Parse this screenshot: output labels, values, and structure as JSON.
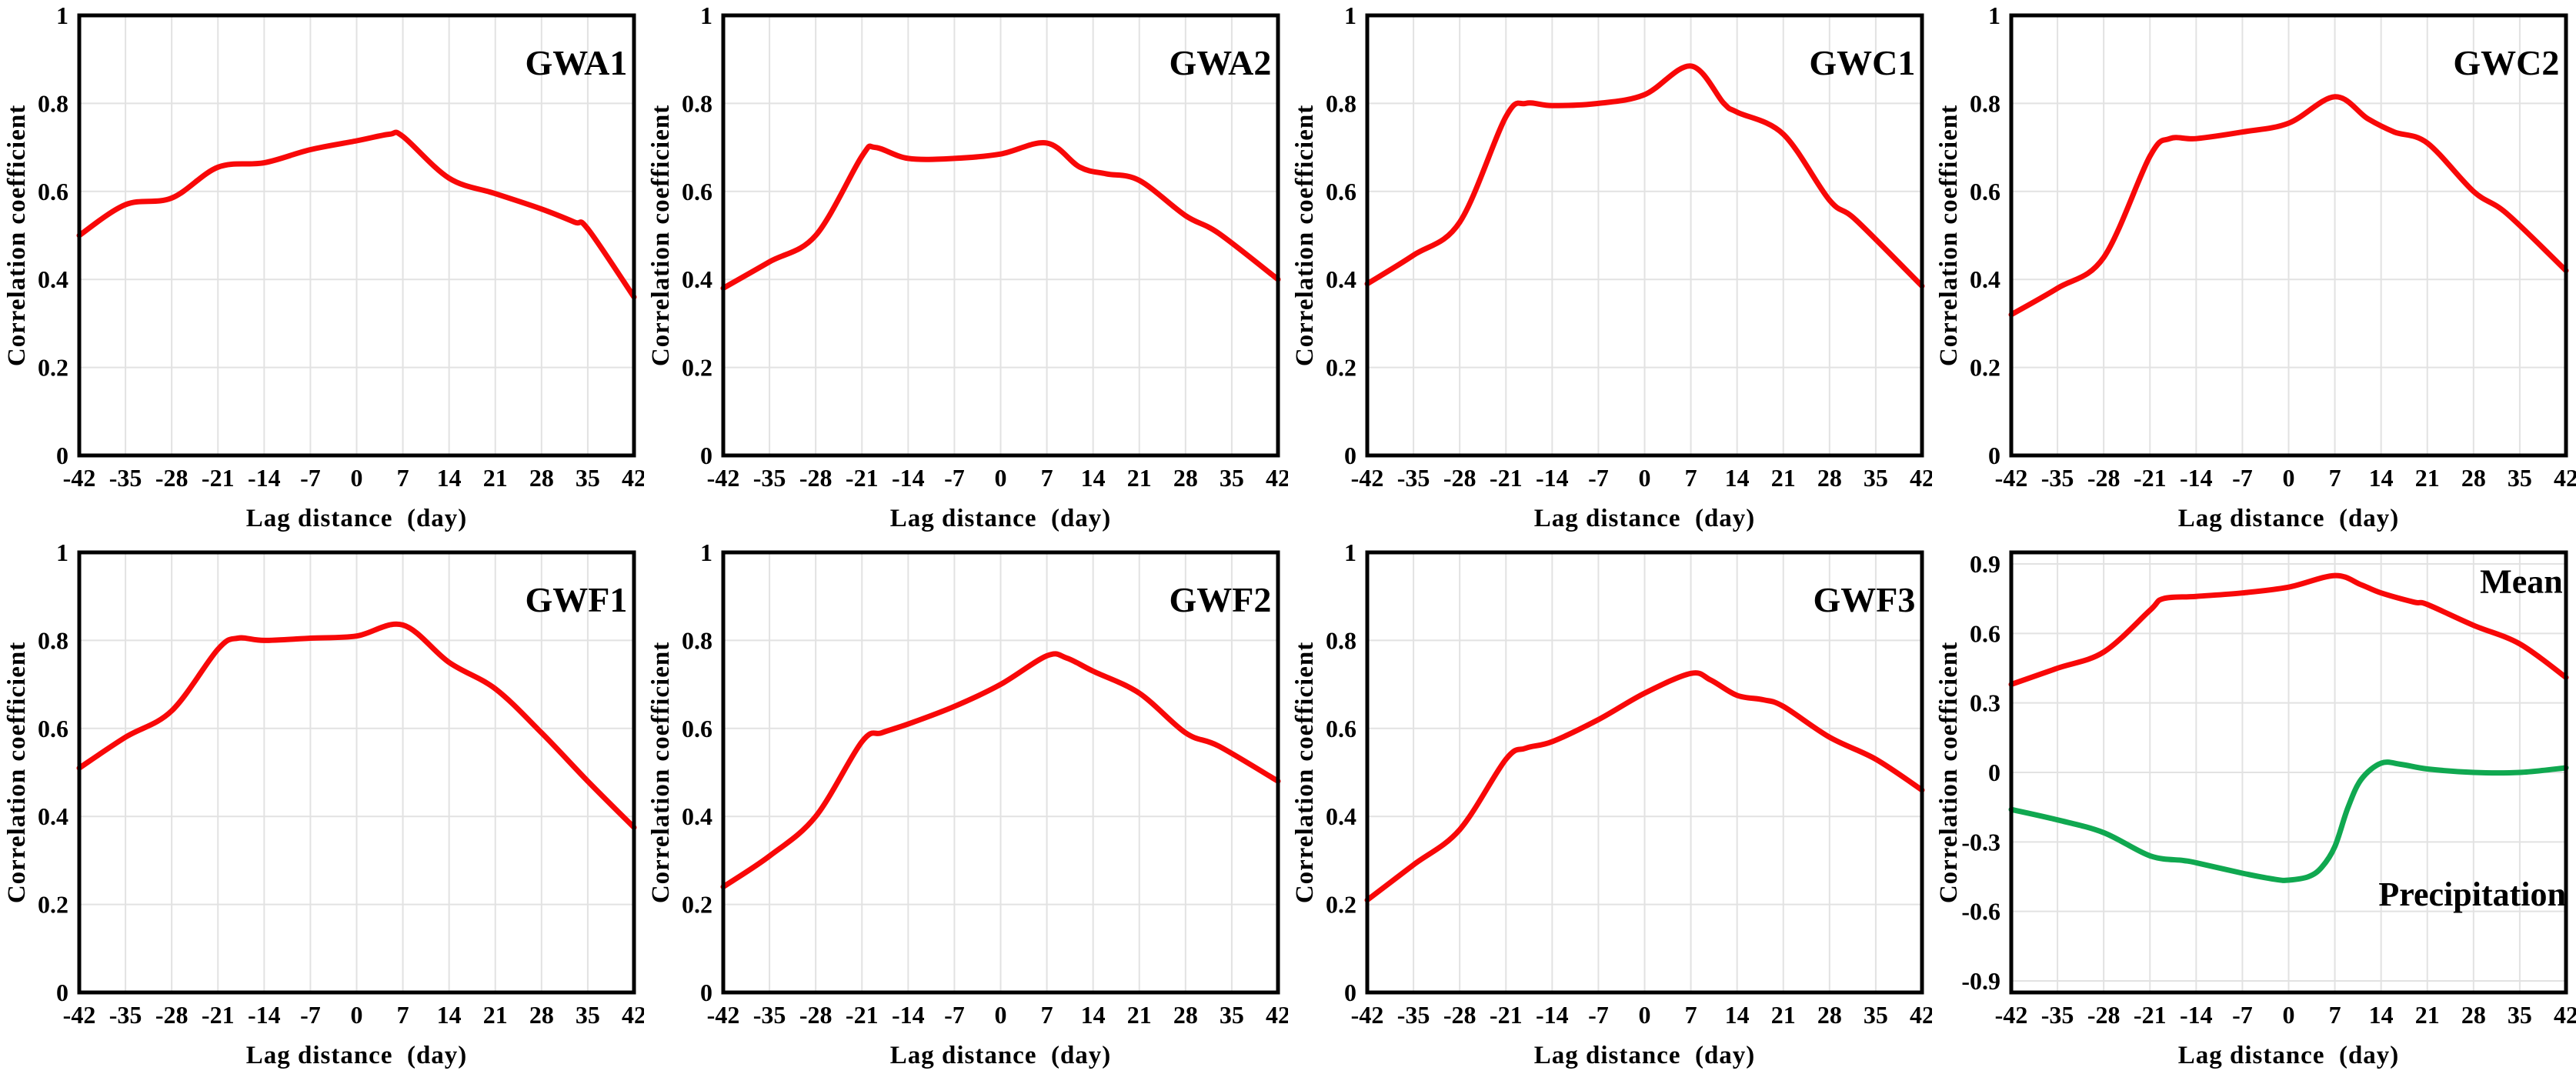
{
  "figure": {
    "ylabel": "Correlation coefficient",
    "xlabel": "Lag distance  (day)",
    "colors": {
      "series_red": "#f80808",
      "series_green": "#10a850",
      "grid": "#e2e2e2",
      "frame": "#000000",
      "text": "#000000",
      "background": "#ffffff"
    }
  },
  "chart_data": [
    {
      "id": "gwa1",
      "type": "line",
      "title": "GWA1",
      "xlabel": "Lag distance  (day)",
      "ylabel": "Correlation coefficient",
      "xlim": [
        -42,
        42
      ],
      "ylim": [
        0,
        1
      ],
      "grid": true,
      "x_ticks": [
        -42,
        -35,
        -28,
        -21,
        -14,
        -7,
        0,
        7,
        14,
        21,
        28,
        35,
        42
      ],
      "y_ticks": [
        1,
        0.8,
        0.6,
        0.4,
        0.2,
        0
      ],
      "series": [
        {
          "name": "GWA1",
          "color": "#f80808",
          "points": [
            [
              -42,
              0.5
            ],
            [
              -35,
              0.57
            ],
            [
              -28,
              0.585
            ],
            [
              -21,
              0.655
            ],
            [
              -14,
              0.665
            ],
            [
              -7,
              0.695
            ],
            [
              0,
              0.715
            ],
            [
              5,
              0.73
            ],
            [
              7,
              0.725
            ],
            [
              14,
              0.63
            ],
            [
              21,
              0.595
            ],
            [
              28,
              0.56
            ],
            [
              33,
              0.53
            ],
            [
              35,
              0.515
            ],
            [
              42,
              0.36
            ]
          ]
        }
      ],
      "annotations": [
        {
          "text": "GWA1",
          "x": 41,
          "y": 0.865,
          "anchor": "end",
          "cls": "panel-title",
          "name": "panel-title-gwa1"
        }
      ]
    },
    {
      "id": "gwa2",
      "type": "line",
      "title": "GWA2",
      "xlabel": "Lag distance  (day)",
      "ylabel": "Correlation coefficient",
      "xlim": [
        -42,
        42
      ],
      "ylim": [
        0,
        1
      ],
      "grid": true,
      "x_ticks": [
        -42,
        -35,
        -28,
        -21,
        -14,
        -7,
        0,
        7,
        14,
        21,
        28,
        35,
        42
      ],
      "y_ticks": [
        1,
        0.8,
        0.6,
        0.4,
        0.2,
        0
      ],
      "series": [
        {
          "name": "GWA2",
          "color": "#f80808",
          "points": [
            [
              -42,
              0.38
            ],
            [
              -35,
              0.44
            ],
            [
              -28,
              0.5
            ],
            [
              -21,
              0.68
            ],
            [
              -19,
              0.7
            ],
            [
              -14,
              0.675
            ],
            [
              -7,
              0.675
            ],
            [
              0,
              0.685
            ],
            [
              7,
              0.71
            ],
            [
              12,
              0.655
            ],
            [
              16,
              0.64
            ],
            [
              21,
              0.625
            ],
            [
              28,
              0.545
            ],
            [
              33,
              0.505
            ],
            [
              42,
              0.4
            ]
          ]
        }
      ],
      "annotations": [
        {
          "text": "GWA2",
          "x": 41,
          "y": 0.865,
          "anchor": "end",
          "cls": "panel-title",
          "name": "panel-title-gwa2"
        }
      ]
    },
    {
      "id": "gwc1",
      "type": "line",
      "title": "GWC1",
      "xlabel": "Lag distance  (day)",
      "ylabel": "Correlation coefficient",
      "xlim": [
        -42,
        42
      ],
      "ylim": [
        0,
        1
      ],
      "grid": true,
      "x_ticks": [
        -42,
        -35,
        -28,
        -21,
        -14,
        -7,
        0,
        7,
        14,
        21,
        28,
        35,
        42
      ],
      "y_ticks": [
        1,
        0.8,
        0.6,
        0.4,
        0.2,
        0
      ],
      "series": [
        {
          "name": "GWC1",
          "color": "#f80808",
          "points": [
            [
              -42,
              0.39
            ],
            [
              -35,
              0.455
            ],
            [
              -28,
              0.53
            ],
            [
              -21,
              0.77
            ],
            [
              -18,
              0.8
            ],
            [
              -14,
              0.795
            ],
            [
              -7,
              0.8
            ],
            [
              0,
              0.82
            ],
            [
              7,
              0.885
            ],
            [
              12,
              0.8
            ],
            [
              14,
              0.78
            ],
            [
              21,
              0.73
            ],
            [
              28,
              0.58
            ],
            [
              32,
              0.535
            ],
            [
              42,
              0.385
            ]
          ]
        }
      ],
      "annotations": [
        {
          "text": "GWC1",
          "x": 41,
          "y": 0.865,
          "anchor": "end",
          "cls": "panel-title",
          "name": "panel-title-gwc1"
        }
      ]
    },
    {
      "id": "gwc2",
      "type": "line",
      "title": "GWC2",
      "xlabel": "Lag distance  (day)",
      "ylabel": "Correlation coefficient",
      "xlim": [
        -42,
        42
      ],
      "ylim": [
        0,
        1
      ],
      "grid": true,
      "x_ticks": [
        -42,
        -35,
        -28,
        -21,
        -14,
        -7,
        0,
        7,
        14,
        21,
        28,
        35,
        42
      ],
      "y_ticks": [
        1,
        0.8,
        0.6,
        0.4,
        0.2,
        0
      ],
      "series": [
        {
          "name": "GWC2",
          "color": "#f80808",
          "points": [
            [
              -42,
              0.32
            ],
            [
              -35,
              0.38
            ],
            [
              -28,
              0.45
            ],
            [
              -21,
              0.68
            ],
            [
              -18,
              0.72
            ],
            [
              -14,
              0.72
            ],
            [
              -7,
              0.735
            ],
            [
              0,
              0.755
            ],
            [
              7,
              0.815
            ],
            [
              12,
              0.765
            ],
            [
              16,
              0.735
            ],
            [
              21,
              0.71
            ],
            [
              28,
              0.6
            ],
            [
              33,
              0.55
            ],
            [
              42,
              0.42
            ]
          ]
        }
      ],
      "annotations": [
        {
          "text": "GWC2",
          "x": 41,
          "y": 0.865,
          "anchor": "end",
          "cls": "panel-title",
          "name": "panel-title-gwc2"
        }
      ]
    },
    {
      "id": "gwf1",
      "type": "line",
      "title": "GWF1",
      "xlabel": "Lag distance  (day)",
      "ylabel": "Correlation coefficient",
      "xlim": [
        -42,
        42
      ],
      "ylim": [
        0,
        1
      ],
      "grid": true,
      "x_ticks": [
        -42,
        -35,
        -28,
        -21,
        -14,
        -7,
        0,
        7,
        14,
        21,
        28,
        35,
        42
      ],
      "y_ticks": [
        1,
        0.8,
        0.6,
        0.4,
        0.2,
        0
      ],
      "series": [
        {
          "name": "GWF1",
          "color": "#f80808",
          "points": [
            [
              -42,
              0.51
            ],
            [
              -35,
              0.58
            ],
            [
              -28,
              0.64
            ],
            [
              -21,
              0.78
            ],
            [
              -18,
              0.805
            ],
            [
              -14,
              0.8
            ],
            [
              -7,
              0.805
            ],
            [
              0,
              0.81
            ],
            [
              7,
              0.835
            ],
            [
              14,
              0.75
            ],
            [
              21,
              0.69
            ],
            [
              28,
              0.59
            ],
            [
              35,
              0.48
            ],
            [
              42,
              0.375
            ]
          ]
        }
      ],
      "annotations": [
        {
          "text": "GWF1",
          "x": 41,
          "y": 0.865,
          "anchor": "end",
          "cls": "panel-title",
          "name": "panel-title-gwf1"
        }
      ]
    },
    {
      "id": "gwf2",
      "type": "line",
      "title": "GWF2",
      "xlabel": "Lag distance  (day)",
      "ylabel": "Correlation coefficient",
      "xlim": [
        -42,
        42
      ],
      "ylim": [
        0,
        1
      ],
      "grid": true,
      "x_ticks": [
        -42,
        -35,
        -28,
        -21,
        -14,
        -7,
        0,
        7,
        14,
        21,
        28,
        35,
        42
      ],
      "y_ticks": [
        1,
        0.8,
        0.6,
        0.4,
        0.2,
        0
      ],
      "series": [
        {
          "name": "GWF2",
          "color": "#f80808",
          "points": [
            [
              -42,
              0.24
            ],
            [
              -35,
              0.31
            ],
            [
              -28,
              0.4
            ],
            [
              -21,
              0.57
            ],
            [
              -18,
              0.59
            ],
            [
              -14,
              0.61
            ],
            [
              -7,
              0.65
            ],
            [
              0,
              0.7
            ],
            [
              7,
              0.765
            ],
            [
              10,
              0.76
            ],
            [
              14,
              0.73
            ],
            [
              21,
              0.68
            ],
            [
              28,
              0.59
            ],
            [
              33,
              0.56
            ],
            [
              42,
              0.48
            ]
          ]
        }
      ],
      "annotations": [
        {
          "text": "GWF2",
          "x": 41,
          "y": 0.865,
          "anchor": "end",
          "cls": "panel-title",
          "name": "panel-title-gwf2"
        }
      ]
    },
    {
      "id": "gwf3",
      "type": "line",
      "title": "GWF3",
      "xlabel": "Lag distance  (day)",
      "ylabel": "Correlation coefficient",
      "xlim": [
        -42,
        42
      ],
      "ylim": [
        0,
        1
      ],
      "grid": true,
      "x_ticks": [
        -42,
        -35,
        -28,
        -21,
        -14,
        -7,
        0,
        7,
        14,
        21,
        28,
        35,
        42
      ],
      "y_ticks": [
        1,
        0.8,
        0.6,
        0.4,
        0.2,
        0
      ],
      "series": [
        {
          "name": "GWF3",
          "color": "#f80808",
          "points": [
            [
              -42,
              0.21
            ],
            [
              -35,
              0.29
            ],
            [
              -28,
              0.37
            ],
            [
              -21,
              0.53
            ],
            [
              -18,
              0.555
            ],
            [
              -14,
              0.57
            ],
            [
              -7,
              0.62
            ],
            [
              0,
              0.68
            ],
            [
              7,
              0.725
            ],
            [
              10,
              0.71
            ],
            [
              14,
              0.675
            ],
            [
              18,
              0.665
            ],
            [
              21,
              0.65
            ],
            [
              28,
              0.58
            ],
            [
              35,
              0.53
            ],
            [
              42,
              0.46
            ]
          ]
        }
      ],
      "annotations": [
        {
          "text": "GWF3",
          "x": 41,
          "y": 0.865,
          "anchor": "end",
          "cls": "panel-title",
          "name": "panel-title-gwf3"
        }
      ]
    },
    {
      "id": "mean-precip",
      "type": "line",
      "title": "",
      "xlabel": "Lag distance  (day)",
      "ylabel": "Correlation coefficient",
      "xlim": [
        -42,
        42
      ],
      "ylim": [
        -0.95,
        0.95
      ],
      "grid": true,
      "x_ticks": [
        -42,
        -35,
        -28,
        -21,
        -14,
        -7,
        0,
        7,
        14,
        21,
        28,
        35,
        42
      ],
      "y_ticks": [
        0.9,
        0.6,
        0.3,
        0,
        -0.3,
        -0.6,
        -0.9
      ],
      "series": [
        {
          "name": "Mean",
          "color": "#f80808",
          "points": [
            [
              -42,
              0.38
            ],
            [
              -35,
              0.45
            ],
            [
              -28,
              0.52
            ],
            [
              -21,
              0.7
            ],
            [
              -19,
              0.75
            ],
            [
              -14,
              0.76
            ],
            [
              -7,
              0.775
            ],
            [
              0,
              0.8
            ],
            [
              7,
              0.85
            ],
            [
              11,
              0.81
            ],
            [
              14,
              0.775
            ],
            [
              19,
              0.735
            ],
            [
              21,
              0.725
            ],
            [
              28,
              0.635
            ],
            [
              35,
              0.555
            ],
            [
              42,
              0.41
            ]
          ]
        },
        {
          "name": "Precipitation",
          "color": "#10a850",
          "points": [
            [
              -42,
              -0.16
            ],
            [
              -35,
              -0.205
            ],
            [
              -28,
              -0.26
            ],
            [
              -21,
              -0.36
            ],
            [
              -16,
              -0.38
            ],
            [
              -14,
              -0.39
            ],
            [
              -7,
              -0.435
            ],
            [
              -2,
              -0.462
            ],
            [
              0,
              -0.465
            ],
            [
              3,
              -0.45
            ],
            [
              5,
              -0.41
            ],
            [
              7,
              -0.32
            ],
            [
              9,
              -0.15
            ],
            [
              11,
              -0.03
            ],
            [
              14,
              0.04
            ],
            [
              17,
              0.035
            ],
            [
              21,
              0.015
            ],
            [
              28,
              0.0
            ],
            [
              35,
              0.0
            ],
            [
              42,
              0.02
            ]
          ]
        }
      ],
      "annotations": [
        {
          "text": "Mean",
          "x": 41.5,
          "y": 0.775,
          "anchor": "end",
          "cls": "series-label",
          "name": "series-label-mean"
        },
        {
          "text": "Precipitation",
          "x": 42,
          "y": -0.575,
          "anchor": "end",
          "cls": "series-label",
          "name": "series-label-precipitation"
        }
      ]
    }
  ]
}
